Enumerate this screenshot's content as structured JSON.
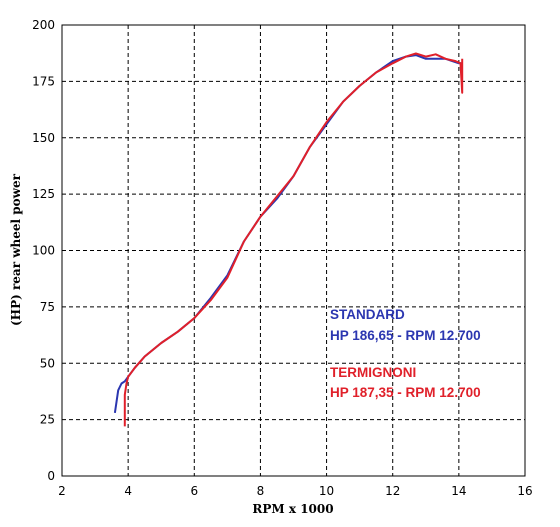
{
  "chart_data": {
    "type": "line",
    "xlabel": "RPM x 1000",
    "ylabel": "(HP) rear wheel power",
    "xlim": [
      2,
      16
    ],
    "ylim": [
      0,
      200
    ],
    "xticks": [
      2,
      4,
      6,
      8,
      10,
      12,
      14,
      16
    ],
    "yticks": [
      0,
      25,
      50,
      75,
      100,
      125,
      150,
      175,
      200
    ],
    "grid": true,
    "series": [
      {
        "name": "STANDARD",
        "color": "#2b36b0",
        "x": [
          3.6,
          3.7,
          3.8,
          3.9,
          4.0,
          4.2,
          4.5,
          5.0,
          5.5,
          6.0,
          6.5,
          7.0,
          7.5,
          8.0,
          8.5,
          9.0,
          9.5,
          10.0,
          10.5,
          11.0,
          11.5,
          12.0,
          12.4,
          12.7,
          13.0,
          13.3,
          13.6,
          13.8,
          14.0,
          14.1
        ],
        "y": [
          28,
          38,
          41,
          42,
          44,
          48,
          53,
          59,
          64,
          70,
          79,
          89,
          104,
          115,
          123,
          133,
          146,
          156,
          166,
          173,
          179,
          184,
          186,
          186.65,
          185,
          185,
          185,
          184,
          183,
          183
        ]
      },
      {
        "name": "TERMIGNONI",
        "color": "#e0202a",
        "x": [
          3.9,
          3.9,
          3.95,
          4.0,
          4.2,
          4.5,
          5.0,
          5.5,
          6.0,
          6.5,
          7.0,
          7.5,
          8.0,
          8.5,
          9.0,
          9.5,
          10.0,
          10.5,
          11.0,
          11.5,
          12.0,
          12.4,
          12.7,
          13.0,
          13.3,
          13.6,
          13.9,
          14.05,
          14.1,
          14.1
        ],
        "y": [
          22,
          36,
          41,
          44,
          48,
          53,
          59,
          64,
          70,
          78,
          88,
          104,
          115,
          124,
          133,
          146,
          157,
          166,
          173,
          179,
          183,
          186,
          187.35,
          186,
          187,
          185,
          184,
          183,
          170,
          185
        ]
      }
    ],
    "annotations": [
      {
        "label": "STANDARD",
        "value": "HP 186,65 - RPM 12.700",
        "color": "#2b36b0"
      },
      {
        "label": "TERMIGNONI",
        "value": "HP 187,35 - RPM 12.700",
        "color": "#e0202a"
      }
    ]
  }
}
